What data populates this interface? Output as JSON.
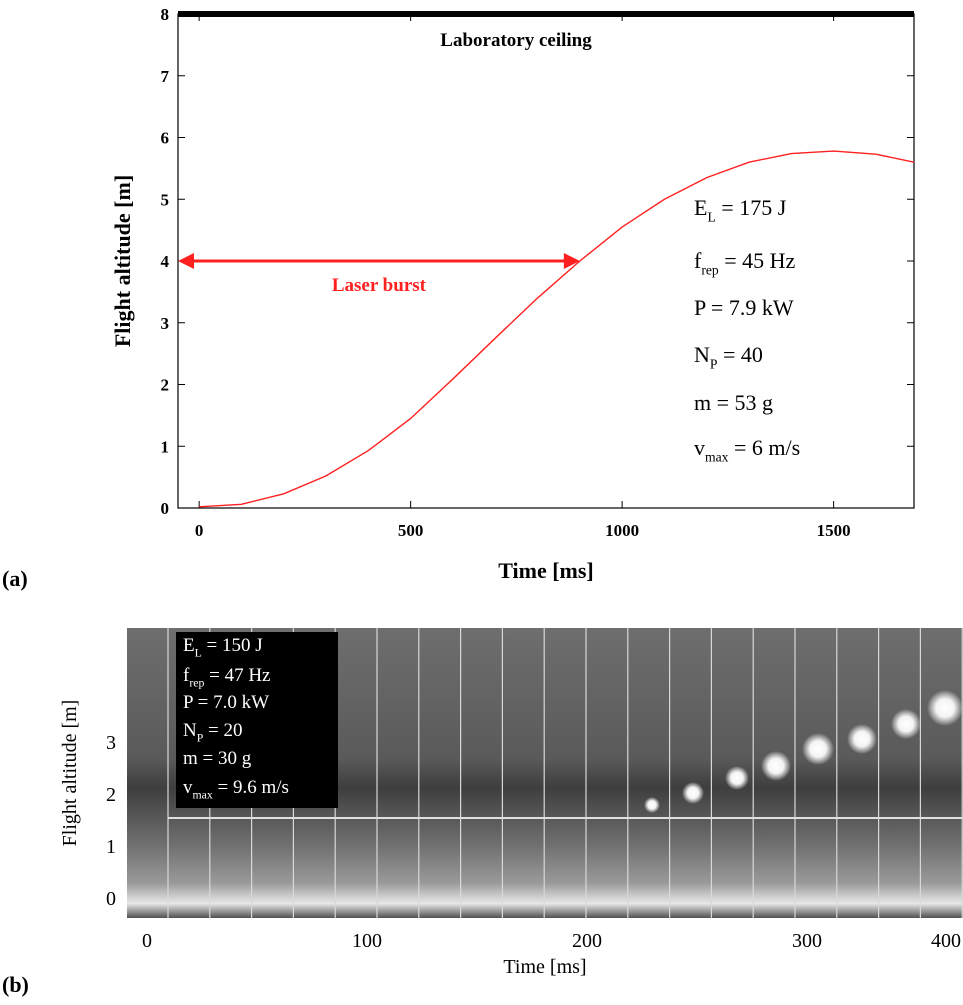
{
  "chart_data": [
    {
      "type": "line",
      "panel_label": "(a)",
      "xlabel": "Time [ms]",
      "ylabel": "Flight altitude [m]",
      "x": [
        0,
        100,
        200,
        300,
        400,
        500,
        600,
        700,
        800,
        900,
        1000,
        1100,
        1200,
        1300,
        1400,
        1500,
        1600,
        1690
      ],
      "series": [
        {
          "color": "#ff2020",
          "values": [
            0.02,
            0.06,
            0.23,
            0.52,
            0.93,
            1.45,
            2.09,
            2.75,
            3.4,
            4.0,
            4.55,
            5.0,
            5.35,
            5.6,
            5.74,
            5.78,
            5.73,
            5.6
          ]
        }
      ],
      "xlim": [
        -50,
        1690
      ],
      "ylim": [
        0,
        8
      ],
      "xticks": [
        0,
        500,
        1000,
        1500
      ],
      "yticks": [
        0,
        1,
        2,
        3,
        4,
        5,
        6,
        7,
        8
      ],
      "ceiling": {
        "label": "Laboratory ceiling",
        "y": 8
      },
      "burst": {
        "label": "Laser burst",
        "x": [
          -50,
          900
        ],
        "y": 4,
        "color": "#ff2020"
      },
      "params": [
        {
          "main": "E",
          "sub": "L",
          "rest": " = 175 J"
        },
        {
          "main": "f",
          "sub": "rep",
          "rest": " = 45 Hz"
        },
        {
          "main": "P = 7.9 kW"
        },
        {
          "main": "N",
          "sub": "P",
          "rest": " = 40"
        },
        {
          "main": "m = 53 g"
        },
        {
          "main": "v",
          "sub": "max",
          "rest": " = 6 m/s"
        }
      ]
    },
    {
      "type": "image",
      "panel_label": "(b)",
      "xlabel": "Time [ms]",
      "ylabel": "Flight altitude [m]",
      "xticks": [
        0,
        100,
        200,
        300,
        400
      ],
      "yticks": [
        0,
        1,
        2,
        3
      ],
      "params": [
        {
          "main": "E",
          "sub": "L",
          "rest": " = 150 J"
        },
        {
          "main": "f",
          "sub": "rep",
          "rest": " = 47 Hz"
        },
        {
          "main": "P = 7.0 kW"
        },
        {
          "main": "N",
          "sub": "P",
          "rest": " = 20"
        },
        {
          "main": "m = 30 g"
        },
        {
          "main": "v",
          "sub": "max",
          "rest": " = 9.6 m/s"
        }
      ]
    }
  ]
}
